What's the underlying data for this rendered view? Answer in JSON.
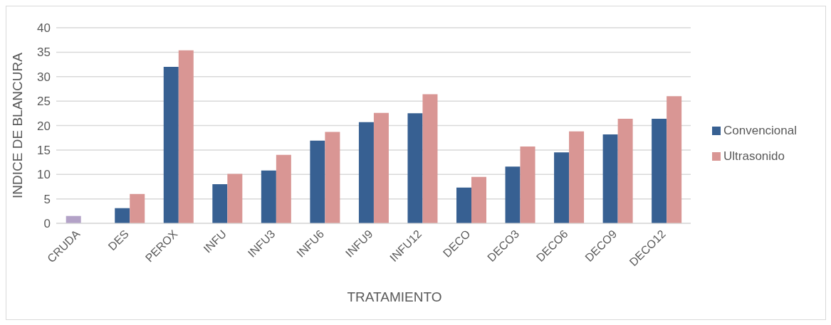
{
  "chart_data": {
    "type": "bar",
    "xlabel": "TRATAMIENTO",
    "ylabel": "INDICE DE BLANCURA",
    "categories": [
      "CRUDA",
      "DES",
      "PEROX",
      "INFU",
      "INFU3",
      "INFU6",
      "INFU9",
      "INFU12",
      "DECO",
      "DECO3",
      "DECO6",
      "DECO9",
      "DECO12"
    ],
    "series": [
      {
        "name": "Convencional",
        "color": "#376092",
        "colors": [
          "#b3a2c7",
          "#376092",
          "#376092",
          "#376092",
          "#376092",
          "#376092",
          "#376092",
          "#376092",
          "#376092",
          "#376092",
          "#376092",
          "#376092",
          "#376092"
        ],
        "values": [
          1.5,
          3.1,
          32.0,
          8.0,
          10.8,
          16.9,
          20.7,
          22.5,
          7.3,
          11.6,
          14.5,
          18.2,
          21.4
        ]
      },
      {
        "name": "Ultrasonido",
        "color": "#d99694",
        "values": [
          null,
          6.0,
          35.4,
          10.1,
          14.0,
          18.7,
          22.6,
          26.4,
          9.5,
          15.7,
          18.8,
          21.4,
          26.0
        ]
      }
    ],
    "ylim": [
      0,
      40
    ],
    "yticks": [
      0,
      5,
      10,
      15,
      20,
      25,
      30,
      35,
      40
    ],
    "grid": "y",
    "legend": "right"
  }
}
